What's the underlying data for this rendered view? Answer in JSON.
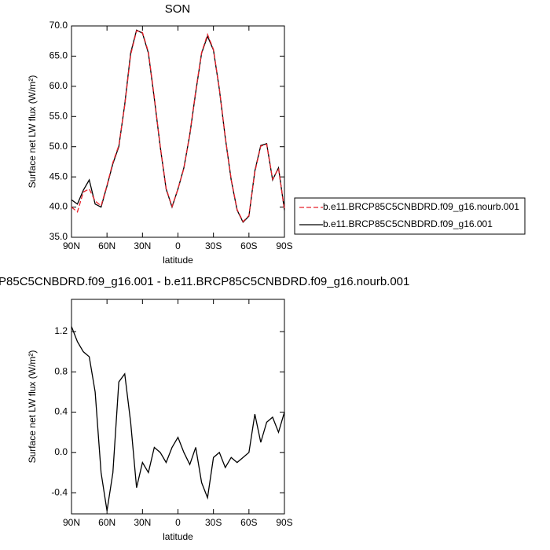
{
  "chart_data": [
    {
      "type": "line",
      "title": "SON",
      "xlabel": "latitude",
      "ylabel": "Surface net LW flux (W/m²)",
      "x": [
        90,
        85,
        80,
        75,
        70,
        65,
        60,
        55,
        50,
        45,
        40,
        35,
        30,
        25,
        20,
        15,
        10,
        5,
        0,
        -5,
        -10,
        -15,
        -20,
        -25,
        -30,
        -35,
        -40,
        -45,
        -50,
        -55,
        -60,
        -65,
        -70,
        -75,
        -80,
        -85,
        -90
      ],
      "xlim": [
        90,
        -90
      ],
      "xticks": [
        {
          "value": 90,
          "label": "90N"
        },
        {
          "value": 60,
          "label": "60N"
        },
        {
          "value": 30,
          "label": "30N"
        },
        0,
        {
          "value": -30,
          "label": "30S"
        },
        {
          "value": -60,
          "label": "60S"
        },
        {
          "value": -90,
          "label": "90S"
        }
      ],
      "ylim": [
        35,
        70
      ],
      "yticks": [
        {
          "value": 35,
          "label": "35.0"
        },
        {
          "value": 40,
          "label": "40.0"
        },
        {
          "value": 45,
          "label": "45.0"
        },
        {
          "value": 50,
          "label": "50.0"
        },
        {
          "value": 55,
          "label": "55.0"
        },
        {
          "value": 60,
          "label": "60.0"
        },
        {
          "value": 65,
          "label": "65.0"
        },
        {
          "value": 70,
          "label": "70.0"
        }
      ],
      "legend": "right",
      "series": [
        {
          "name": "b.e11.BRCP85C5CNBDRD.f09_g16.nourb.001",
          "color": "#e8202a",
          "dash": true,
          "values": [
            40,
            39.2,
            42.5,
            43,
            41,
            40.2,
            43.6,
            47.4,
            50.2,
            56.8,
            65.2,
            69.2,
            68.9,
            65.7,
            58.2,
            50.1,
            43.1,
            40.1,
            43,
            46.4,
            52.1,
            59.2,
            65.6,
            68.6,
            66.1,
            59.6,
            51.6,
            44.6,
            39.6,
            37.6,
            38.6,
            45.8,
            50.1,
            50.4,
            44.6,
            46.4,
            39.6
          ]
        },
        {
          "name": "b.e11.BRCP85C5CNBDRD.f09_g16.001",
          "color": "#000000",
          "dash": false,
          "values": [
            41.2,
            40.5,
            42.8,
            44.5,
            40.5,
            40,
            43.5,
            47.2,
            50,
            57,
            65.5,
            69.3,
            68.8,
            65.5,
            58,
            50,
            43,
            40,
            43,
            46.5,
            52,
            59,
            65.5,
            68.3,
            66,
            59.5,
            51.5,
            44.5,
            39.5,
            37.5,
            38.5,
            46,
            50.2,
            50.5,
            44.5,
            46.5,
            39.5
          ]
        }
      ]
    },
    {
      "type": "line",
      "title": "P85C5CNBDRD.f09_g16.001 - b.e11.BRCP85C5CNBDRD.f09_g16.nourb.001",
      "xlabel": "latitude",
      "ylabel": "Surface net LW flux (W/m²)",
      "x": [
        90,
        85,
        80,
        75,
        70,
        65,
        60,
        55,
        50,
        45,
        40,
        35,
        30,
        25,
        20,
        15,
        10,
        5,
        0,
        -5,
        -10,
        -15,
        -20,
        -25,
        -30,
        -35,
        -40,
        -45,
        -50,
        -55,
        -60,
        -65,
        -70,
        -75,
        -80,
        -85,
        -90
      ],
      "xlim": [
        90,
        -90
      ],
      "xticks": [
        {
          "value": 90,
          "label": "90N"
        },
        {
          "value": 60,
          "label": "60N"
        },
        {
          "value": 30,
          "label": "30N"
        },
        0,
        {
          "value": -30,
          "label": "30S"
        },
        {
          "value": -60,
          "label": "60S"
        },
        {
          "value": -90,
          "label": "90S"
        }
      ],
      "ylim": [
        -0.61,
        1.52
      ],
      "yticks": [
        -0.4,
        {
          "value": 0,
          "label": "0.0"
        },
        0.4,
        0.8,
        1.2
      ],
      "series": [
        {
          "color": "#000000",
          "dash": false,
          "values": [
            1.25,
            1.1,
            1.0,
            0.95,
            0.6,
            -0.2,
            -0.58,
            -0.2,
            0.7,
            0.78,
            0.3,
            -0.35,
            -0.1,
            -0.2,
            0.05,
            0.0,
            -0.1,
            0.05,
            0.15,
            0.0,
            -0.12,
            0.05,
            -0.3,
            -0.45,
            -0.05,
            0.0,
            -0.15,
            -0.05,
            -0.1,
            -0.05,
            0.0,
            0.38,
            0.1,
            0.3,
            0.35,
            0.2,
            0.4
          ]
        }
      ]
    }
  ]
}
